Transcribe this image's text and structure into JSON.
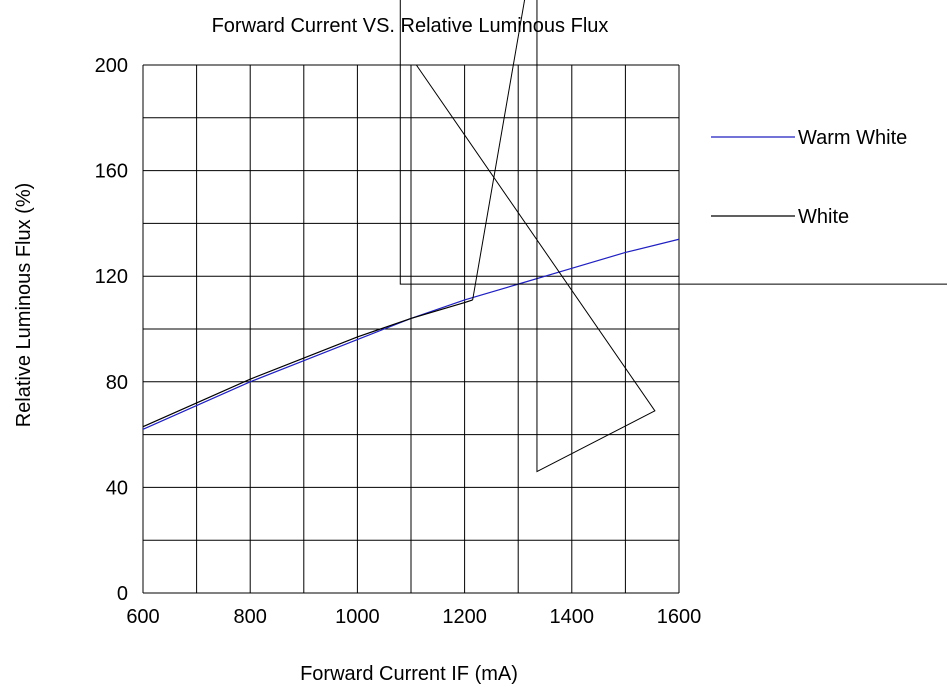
{
  "chart_data": {
    "type": "line",
    "title": "Forward Current VS. Relative Luminous Flux",
    "xlabel": "Forward Current IF (mA)",
    "ylabel": "Relative Luminous Flux (%)",
    "xlim": [
      600,
      1600
    ],
    "ylim": [
      0,
      200
    ],
    "x_ticks": [
      600,
      800,
      1000,
      1200,
      1400,
      1600
    ],
    "y_ticks": [
      0,
      40,
      80,
      120,
      160,
      200
    ],
    "grid": true,
    "legend_position": "right",
    "series": [
      {
        "name": "Warm White",
        "color": "#1f1fbf",
        "x": [
          600,
          700,
          800,
          900,
          1000,
          1100,
          1200,
          1300,
          1400,
          1500,
          1600
        ],
        "y": [
          62,
          71,
          80,
          88,
          96,
          104,
          111,
          117,
          123,
          129,
          134
        ]
      },
      {
        "name": "White",
        "color": "#000000",
        "x": [
          600,
          700,
          800,
          900,
          1000,
          1100,
          1200,
          1215
        ],
        "y": [
          63,
          72,
          81,
          89,
          97,
          104,
          110,
          111
        ],
        "extra_strokes": [
          [
            [
              1215,
              111
            ],
            [
              1325,
              240
            ]
          ],
          [
            [
              1080,
              240
            ],
            [
              1080,
              117
            ],
            [
              1600,
              117
            ],
            [
              1600,
              117
            ],
            [
              2100,
              117
            ]
          ],
          [
            [
              1335,
              240
            ],
            [
              1335,
              46
            ],
            [
              1555,
              69
            ],
            [
              1110,
              200
            ]
          ]
        ]
      }
    ]
  }
}
